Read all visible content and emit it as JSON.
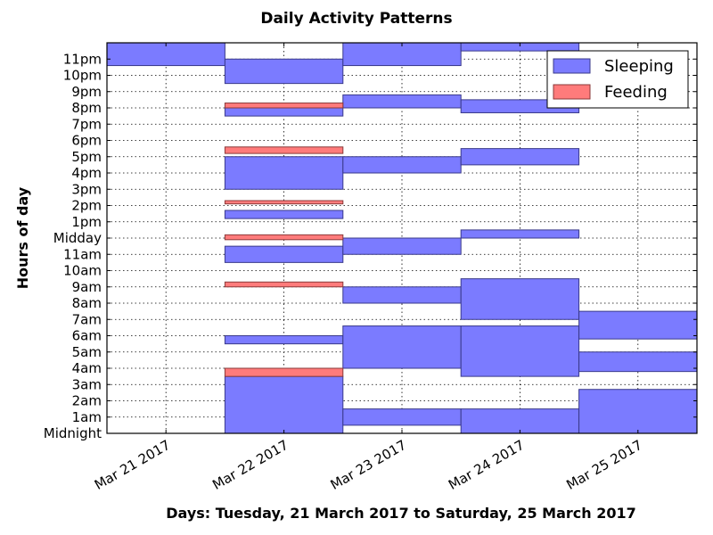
{
  "chart_data": {
    "type": "bar",
    "title": "Daily Activity Patterns",
    "xlabel": "Days: Tuesday, 21 March 2017 to Saturday, 25 March 2017",
    "ylabel": "Hours of day",
    "xlim": [
      "2017-03-20",
      "2017-03-25"
    ],
    "ylim": [
      0,
      24
    ],
    "x_ticks": [
      "Mar 21 2017",
      "Mar 22 2017",
      "Mar 23 2017",
      "Mar 24 2017",
      "Mar 25 2017"
    ],
    "y_ticks": [
      "Midnight",
      "1am",
      "2am",
      "3am",
      "4am",
      "5am",
      "6am",
      "7am",
      "8am",
      "9am",
      "10am",
      "11am",
      "Midday",
      "1pm",
      "2pm",
      "3pm",
      "4pm",
      "5pm",
      "6pm",
      "7pm",
      "8pm",
      "9pm",
      "10pm",
      "11pm"
    ],
    "grid": true,
    "legend_position": "top-right",
    "series": [
      {
        "name": "Sleeping",
        "color": "#7b7bff",
        "edge_color": "#3a3a8a",
        "intervals": [
          {
            "day": "2017-03-20",
            "start": 22.6,
            "end": 24
          },
          {
            "day": "2017-03-21",
            "start": 0,
            "end": 3.5
          },
          {
            "day": "2017-03-21",
            "start": 5.5,
            "end": 6.0
          },
          {
            "day": "2017-03-21",
            "start": 10.5,
            "end": 11.5
          },
          {
            "day": "2017-03-21",
            "start": 13.2,
            "end": 13.7
          },
          {
            "day": "2017-03-21",
            "start": 15.0,
            "end": 17.0
          },
          {
            "day": "2017-03-21",
            "start": 19.5,
            "end": 20.0
          },
          {
            "day": "2017-03-21",
            "start": 21.5,
            "end": 23.0
          },
          {
            "day": "2017-03-22",
            "start": 0.5,
            "end": 1.5
          },
          {
            "day": "2017-03-22",
            "start": 4.0,
            "end": 6.6
          },
          {
            "day": "2017-03-22",
            "start": 8.0,
            "end": 9.0
          },
          {
            "day": "2017-03-22",
            "start": 11.0,
            "end": 12.0
          },
          {
            "day": "2017-03-22",
            "start": 16.0,
            "end": 17.0
          },
          {
            "day": "2017-03-22",
            "start": 20.0,
            "end": 20.8
          },
          {
            "day": "2017-03-22",
            "start": 22.6,
            "end": 24
          },
          {
            "day": "2017-03-23",
            "start": 0,
            "end": 1.5
          },
          {
            "day": "2017-03-23",
            "start": 3.5,
            "end": 6.6
          },
          {
            "day": "2017-03-23",
            "start": 7.0,
            "end": 9.5
          },
          {
            "day": "2017-03-23",
            "start": 12.0,
            "end": 12.5
          },
          {
            "day": "2017-03-23",
            "start": 16.5,
            "end": 17.5
          },
          {
            "day": "2017-03-23",
            "start": 19.7,
            "end": 20.5
          },
          {
            "day": "2017-03-23",
            "start": 23.5,
            "end": 24
          },
          {
            "day": "2017-03-24",
            "start": 0,
            "end": 2.7
          },
          {
            "day": "2017-03-24",
            "start": 3.8,
            "end": 5.0
          },
          {
            "day": "2017-03-24",
            "start": 5.8,
            "end": 7.5
          }
        ]
      },
      {
        "name": "Feeding",
        "color": "#ff7b7b",
        "edge_color": "#8a3a3a",
        "intervals": [
          {
            "day": "2017-03-21",
            "start": 3.5,
            "end": 4.0
          },
          {
            "day": "2017-03-21",
            "start": 9.0,
            "end": 9.3
          },
          {
            "day": "2017-03-21",
            "start": 11.9,
            "end": 12.2
          },
          {
            "day": "2017-03-21",
            "start": 14.1,
            "end": 14.3
          },
          {
            "day": "2017-03-21",
            "start": 17.2,
            "end": 17.6
          },
          {
            "day": "2017-03-21",
            "start": 20.0,
            "end": 20.3
          }
        ]
      }
    ]
  }
}
